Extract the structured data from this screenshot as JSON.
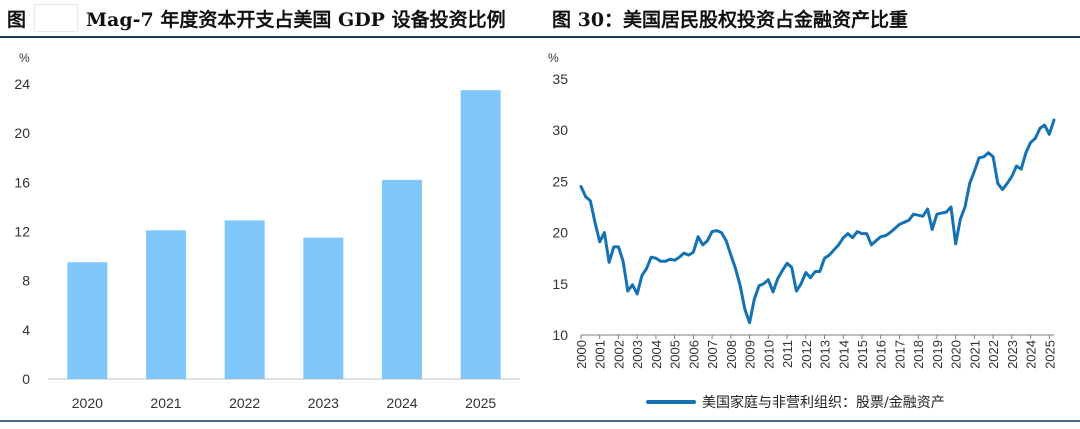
{
  "titles": {
    "left": "图",
    "left_main": "Mag-7 年度资本开支占美国 GDP 设备投资比例",
    "right": "图 30：美国居民股权投资占金融资产比重"
  },
  "chart_data": [
    {
      "type": "bar",
      "title": "Mag-7 年度资本开支占美国 GDP 设备投资比例",
      "ylabel": "%",
      "xlabel": "",
      "categories": [
        "2020",
        "2021",
        "2022",
        "2023",
        "2024",
        "2025"
      ],
      "values": [
        9.5,
        12.1,
        12.9,
        11.5,
        16.2,
        23.5
      ],
      "ylim": [
        0,
        24
      ],
      "yticks": [
        "0",
        "4",
        "8",
        "12",
        "16",
        "20",
        "24"
      ],
      "color": "#7fc7fa"
    },
    {
      "type": "line",
      "title": "美国居民股权投资占金融资产比重",
      "ylabel": "%",
      "xlabel": "",
      "ylim": [
        10,
        35
      ],
      "yticks": [
        "10",
        "15",
        "20",
        "25",
        "30",
        "35"
      ],
      "xlim": [
        2000,
        2025.25
      ],
      "xticks": [
        "2000",
        "2001",
        "2002",
        "2003",
        "2004",
        "2005",
        "2006",
        "2007",
        "2008",
        "2009",
        "2010",
        "2011",
        "2012",
        "2013",
        "2014",
        "2015",
        "2016",
        "2017",
        "2018",
        "2019",
        "2020",
        "2021",
        "2022",
        "2023",
        "2024",
        "2025"
      ],
      "color": "#1472b4",
      "series": [
        {
          "name": "美国家庭与非营利组织：股票/金融资产",
          "x": [
            2000.0,
            2000.25,
            2000.5,
            2000.75,
            2001.0,
            2001.25,
            2001.5,
            2001.75,
            2002.0,
            2002.25,
            2002.5,
            2002.75,
            2003.0,
            2003.25,
            2003.5,
            2003.75,
            2004.0,
            2004.25,
            2004.5,
            2004.75,
            2005.0,
            2005.25,
            2005.5,
            2005.75,
            2006.0,
            2006.25,
            2006.5,
            2006.75,
            2007.0,
            2007.25,
            2007.5,
            2007.75,
            2008.0,
            2008.25,
            2008.5,
            2008.75,
            2009.0,
            2009.25,
            2009.5,
            2009.75,
            2010.0,
            2010.25,
            2010.5,
            2010.75,
            2011.0,
            2011.25,
            2011.5,
            2011.75,
            2012.0,
            2012.25,
            2012.5,
            2012.75,
            2013.0,
            2013.25,
            2013.5,
            2013.75,
            2014.0,
            2014.25,
            2014.5,
            2014.75,
            2015.0,
            2015.25,
            2015.5,
            2015.75,
            2016.0,
            2016.25,
            2016.5,
            2016.75,
            2017.0,
            2017.25,
            2017.5,
            2017.75,
            2018.0,
            2018.25,
            2018.5,
            2018.75,
            2019.0,
            2019.25,
            2019.5,
            2019.75,
            2020.0,
            2020.25,
            2020.5,
            2020.75,
            2021.0,
            2021.25,
            2021.5,
            2021.75,
            2022.0,
            2022.25,
            2022.5,
            2022.75,
            2023.0,
            2023.25,
            2023.5,
            2023.75,
            2024.0,
            2024.25,
            2024.5,
            2024.75,
            2025.0,
            2025.25
          ],
          "values": [
            24.5,
            23.5,
            23.1,
            21.0,
            19.1,
            20.0,
            17.1,
            18.6,
            18.6,
            17.2,
            14.3,
            14.9,
            14.0,
            15.8,
            16.5,
            17.6,
            17.5,
            17.2,
            17.2,
            17.4,
            17.3,
            17.6,
            18.0,
            17.8,
            18.1,
            19.6,
            18.8,
            19.2,
            20.1,
            20.2,
            20.0,
            19.2,
            17.8,
            16.5,
            14.8,
            12.5,
            11.2,
            13.5,
            14.8,
            15.0,
            15.4,
            14.2,
            15.5,
            16.3,
            17.0,
            16.6,
            14.3,
            15.0,
            16.1,
            15.6,
            16.2,
            16.2,
            17.5,
            17.8,
            18.3,
            18.8,
            19.5,
            19.9,
            19.5,
            20.1,
            19.9,
            19.9,
            18.8,
            19.2,
            19.6,
            19.7,
            20.0,
            20.4,
            20.8,
            21.0,
            21.2,
            21.8,
            21.7,
            21.6,
            22.3,
            20.3,
            21.8,
            21.9,
            22.0,
            22.5,
            18.9,
            21.3,
            22.5,
            24.8,
            26.0,
            27.3,
            27.4,
            27.8,
            27.4,
            24.8,
            24.2,
            24.8,
            25.5,
            26.5,
            26.2,
            27.8,
            28.8,
            29.2,
            30.2,
            30.5,
            29.6,
            31.0
          ]
        }
      ]
    }
  ]
}
